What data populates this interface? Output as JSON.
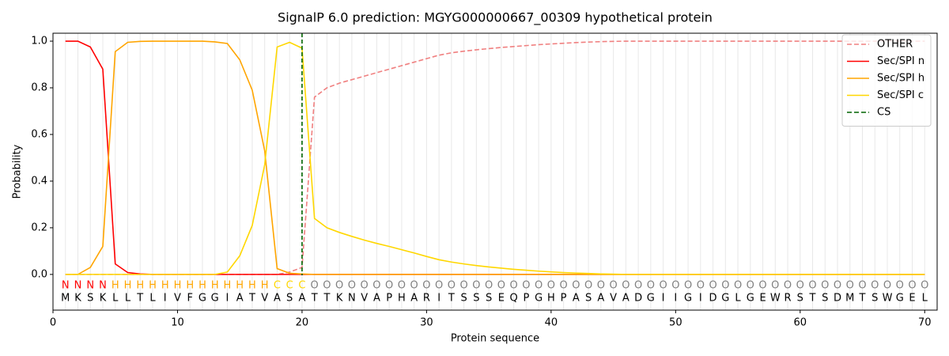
{
  "chart_data": {
    "type": "line",
    "title": "SignalP 6.0 prediction: MGYG000000667_00309 hypothetical protein",
    "xlabel": "Protein sequence",
    "ylabel": "Probability",
    "xlim": [
      0,
      71
    ],
    "ylim": [
      -0.153,
      1.034
    ],
    "xticks": [
      0,
      10,
      20,
      30,
      40,
      50,
      60,
      70
    ],
    "yticks": [
      {
        "value": 0,
        "label": "0.0"
      },
      {
        "value": 0.2,
        "label": "0.2"
      },
      {
        "value": 0.4,
        "label": "0.4"
      },
      {
        "value": 0.6,
        "label": "0.6"
      },
      {
        "value": 0.8,
        "label": "0.8"
      },
      {
        "value": 1.0,
        "label": "1.0"
      }
    ],
    "position_grid": true,
    "legend": "upper right",
    "x": [
      1,
      2,
      3,
      4,
      5,
      6,
      7,
      8,
      9,
      10,
      11,
      12,
      13,
      14,
      15,
      16,
      17,
      18,
      19,
      20,
      21,
      22,
      23,
      24,
      25,
      26,
      27,
      28,
      29,
      30,
      31,
      32,
      33,
      34,
      35,
      36,
      37,
      38,
      39,
      40,
      41,
      42,
      43,
      44,
      45,
      46,
      47,
      48,
      49,
      50,
      51,
      52,
      53,
      54,
      55,
      56,
      57,
      58,
      59,
      60,
      61,
      62,
      63,
      64,
      65,
      66,
      67,
      68,
      69,
      70
    ],
    "sequence": [
      "M",
      "K",
      "S",
      "K",
      "L",
      "L",
      "T",
      "L",
      "I",
      "V",
      "F",
      "G",
      "G",
      "I",
      "A",
      "T",
      "V",
      "A",
      "S",
      "A",
      "T",
      "T",
      "K",
      "N",
      "V",
      "A",
      "P",
      "H",
      "A",
      "R",
      "I",
      "T",
      "S",
      "S",
      "S",
      "E",
      "Q",
      "P",
      "G",
      "H",
      "P",
      "A",
      "S",
      "A",
      "V",
      "A",
      "D",
      "G",
      "I",
      "I",
      "G",
      "I",
      "D",
      "G",
      "L",
      "G",
      "E",
      "W",
      "R",
      "S",
      "T",
      "S",
      "D",
      "M",
      "T",
      "S",
      "W",
      "G",
      "E",
      "L"
    ],
    "labels": [
      "N",
      "N",
      "N",
      "N",
      "H",
      "H",
      "H",
      "H",
      "H",
      "H",
      "H",
      "H",
      "H",
      "H",
      "H",
      "H",
      "H",
      "C",
      "C",
      "C",
      "O",
      "O",
      "O",
      "O",
      "O",
      "O",
      "O",
      "O",
      "O",
      "O",
      "O",
      "O",
      "O",
      "O",
      "O",
      "O",
      "O",
      "O",
      "O",
      "O",
      "O",
      "O",
      "O",
      "O",
      "O",
      "O",
      "O",
      "O",
      "O",
      "O",
      "O",
      "O",
      "O",
      "O",
      "O",
      "O",
      "O",
      "O",
      "O",
      "O",
      "O",
      "O",
      "O",
      "O",
      "O",
      "O",
      "O",
      "O",
      "O",
      "O"
    ],
    "label_colors": {
      "N": "#ff0000",
      "H": "#ffa500",
      "C": "#ffd700",
      "O": "#808080"
    },
    "series": [
      {
        "name": "OTHER",
        "color": "#f08080",
        "dash": true,
        "values": [
          0,
          0,
          0,
          0,
          0,
          0,
          0,
          0,
          0,
          0,
          0,
          0,
          0,
          0,
          0,
          0,
          0,
          0,
          0.01,
          0.03,
          0.76,
          0.8,
          0.82,
          0.835,
          0.85,
          0.865,
          0.88,
          0.895,
          0.91,
          0.925,
          0.94,
          0.95,
          0.957,
          0.963,
          0.968,
          0.973,
          0.977,
          0.981,
          0.985,
          0.988,
          0.991,
          0.994,
          0.996,
          0.998,
          0.999,
          1,
          1,
          1,
          1,
          1,
          1,
          1,
          1,
          1,
          1,
          1,
          1,
          1,
          1,
          1,
          1,
          1,
          1,
          1,
          1,
          1,
          1,
          1,
          1,
          1
        ]
      },
      {
        "name": "Sec/SPI n",
        "color": "#ff0000",
        "dash": false,
        "values": [
          1,
          1,
          0.975,
          0.88,
          0.045,
          0.008,
          0.002,
          0,
          0,
          0,
          0,
          0,
          0,
          0,
          0,
          0,
          0,
          0,
          0,
          0,
          0,
          0,
          0,
          0,
          0,
          0,
          0,
          0,
          0,
          0,
          0,
          0,
          0,
          0,
          0,
          0,
          0,
          0,
          0,
          0,
          0,
          0,
          0,
          0,
          0,
          0,
          0,
          0,
          0,
          0,
          0,
          0,
          0,
          0,
          0,
          0,
          0,
          0,
          0,
          0,
          0,
          0,
          0,
          0,
          0,
          0,
          0,
          0,
          0,
          0
        ]
      },
      {
        "name": "Sec/SPI h",
        "color": "#ffa500",
        "dash": false,
        "values": [
          0,
          0,
          0.03,
          0.12,
          0.955,
          0.995,
          0.999,
          1,
          1,
          1,
          1,
          1,
          0.997,
          0.99,
          0.92,
          0.79,
          0.53,
          0.025,
          0.005,
          0.002,
          0,
          0,
          0,
          0,
          0,
          0,
          0,
          0,
          0,
          0,
          0,
          0,
          0,
          0,
          0,
          0,
          0,
          0,
          0,
          0,
          0,
          0,
          0,
          0,
          0,
          0,
          0,
          0,
          0,
          0,
          0,
          0,
          0,
          0,
          0,
          0,
          0,
          0,
          0,
          0,
          0,
          0,
          0,
          0,
          0,
          0,
          0,
          0,
          0,
          0
        ]
      },
      {
        "name": "Sec/SPI c",
        "color": "#ffd700",
        "dash": false,
        "values": [
          0,
          0,
          0,
          0,
          0,
          0,
          0,
          0,
          0,
          0,
          0,
          0,
          0,
          0.01,
          0.08,
          0.21,
          0.47,
          0.975,
          0.995,
          0.97,
          0.24,
          0.2,
          0.18,
          0.163,
          0.147,
          0.133,
          0.12,
          0.106,
          0.092,
          0.077,
          0.063,
          0.053,
          0.045,
          0.038,
          0.032,
          0.027,
          0.022,
          0.018,
          0.014,
          0.011,
          0.008,
          0.006,
          0.004,
          0.002,
          0.001,
          0,
          0,
          0,
          0,
          0,
          0,
          0,
          0,
          0,
          0,
          0,
          0,
          0,
          0,
          0,
          0,
          0,
          0,
          0,
          0,
          0,
          0,
          0,
          0,
          0
        ]
      }
    ],
    "cs": {
      "name": "CS",
      "x": 20,
      "color": "#006400"
    }
  }
}
